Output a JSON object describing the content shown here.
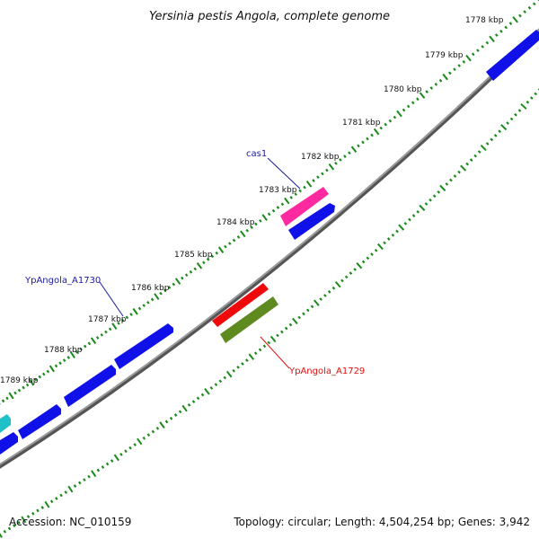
{
  "title": "Yersinia pestis Angola, complete genome",
  "footer": {
    "accession": "Accession: NC_010159",
    "summary": "Topology: circular; Length: 4,504,254 bp; Genes: 3,942"
  },
  "colors": {
    "backbone": "#7a7a7a",
    "tick": "#1a8a1a",
    "gene_blue": "#1010e8",
    "gene_pink": "#ff2aa0",
    "gene_red": "#ee0a0a",
    "gene_olive": "#5f8a20",
    "gene_cyan": "#20c0c8",
    "label_blue": "#1a1aa0",
    "label_red": "#e01010"
  },
  "scale_labels": [
    "1778 kbp",
    "1779 kbp",
    "1780 kbp",
    "1781 kbp",
    "1782 kbp",
    "1783 kbp",
    "1784 kbp",
    "1785 kbp",
    "1786 kbp",
    "1787 kbp",
    "1788 kbp",
    "1789 kbp"
  ],
  "gene_labels": {
    "cas1": "cas1",
    "a1730": "YpAngola_A1730",
    "a1729": "YpAngola_A1729"
  }
}
